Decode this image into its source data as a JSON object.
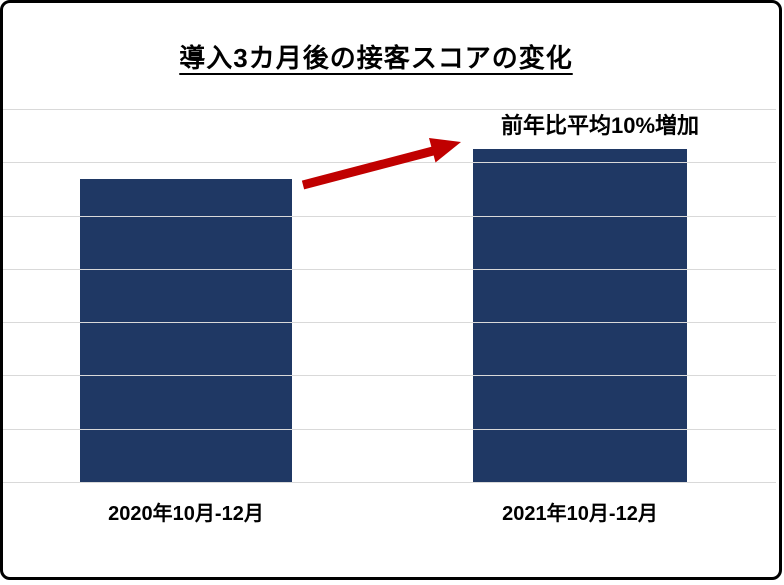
{
  "chart_data": {
    "type": "bar",
    "title": "導入3カ月後の接客スコアの変化",
    "categories": [
      "2020年10月-12月",
      "2021年10月-12月"
    ],
    "values": [
      57,
      62.7
    ],
    "ylim": [
      0,
      70
    ],
    "gridline_interval": 10,
    "yticks_labeled": false,
    "grid": true,
    "annotation": "前年比平均10%増加",
    "annotation_target": "2021年10月-12月"
  },
  "colors": {
    "bar": "#1F3864",
    "arrow": "#C00000",
    "gridline": "#D9D9D9",
    "frame": "#000000",
    "background": "#FFFFFF",
    "text": "#000000"
  }
}
